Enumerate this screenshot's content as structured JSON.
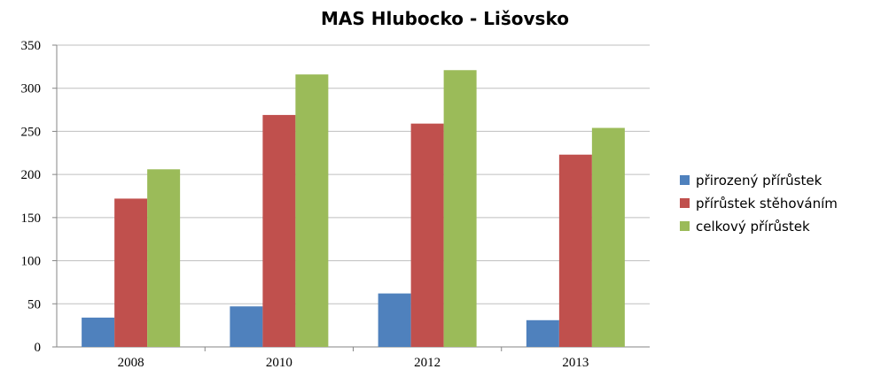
{
  "chart_data": {
    "type": "bar",
    "title": "MAS Hlubocko - Lišovsko",
    "xlabel": "",
    "ylabel": "",
    "categories": [
      "2008",
      "2010",
      "2012",
      "2013"
    ],
    "ylim": [
      0,
      350
    ],
    "yticks": [
      "0",
      "50",
      "100",
      "150",
      "200",
      "250",
      "300",
      "350"
    ],
    "grid": true,
    "legend_position": "right",
    "series": [
      {
        "name": "přirozený přírůstek",
        "values": [
          34,
          47,
          62,
          31
        ],
        "color": "#4F81BD"
      },
      {
        "name": "přírůstek stěhováním",
        "values": [
          172,
          269,
          259,
          223
        ],
        "color": "#C0504D"
      },
      {
        "name": "celkový přírůstek",
        "values": [
          206,
          316,
          321,
          254
        ],
        "color": "#9BBB59"
      }
    ]
  }
}
